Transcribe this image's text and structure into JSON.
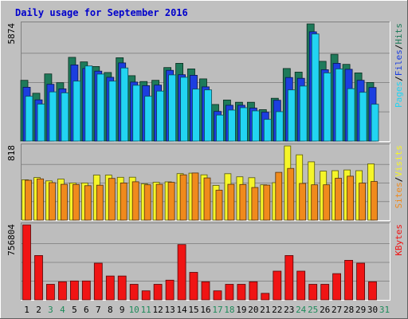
{
  "colors": {
    "background": "#C0C0C0",
    "panel": "#BDBDBD",
    "title": "#0000CC",
    "hits": "#1E7A5A",
    "files": "#1C3EE0",
    "pages": "#22D4F2",
    "visits": "#F5F529",
    "sites": "#F08A1C",
    "kbytes": "#F01414",
    "weekend": "#1E8A5A",
    "weekday": "#000000"
  },
  "chart_data": {
    "type": "bar",
    "title": "Daily usage for September 2016",
    "days": [
      "1",
      "2",
      "3",
      "4",
      "5",
      "6",
      "7",
      "8",
      "9",
      "10",
      "11",
      "12",
      "13",
      "14",
      "15",
      "16",
      "17",
      "18",
      "19",
      "20",
      "21",
      "22",
      "23",
      "24",
      "25",
      "26",
      "27",
      "28",
      "29",
      "30",
      "31"
    ],
    "weekend_days": [
      "3",
      "4",
      "10",
      "11",
      "17",
      "18",
      "24",
      "25",
      "31"
    ],
    "panels": [
      {
        "id": "hits",
        "max_label": "5874",
        "ylim": [
          0,
          5874
        ],
        "legend": [
          "Pages",
          "Files",
          "Hits"
        ],
        "legend_sep": "/",
        "series": [
          {
            "name": "Hits",
            "values": [
              3050,
              2400,
              3370,
              2930,
              4200,
              3970,
              3740,
              3440,
              4180,
              3280,
              2990,
              3050,
              3690,
              3900,
              3620,
              3120,
              1840,
              2060,
              1950,
              1950,
              1580,
              2150,
              3640,
              3460,
              5874,
              4000,
              4350,
              3850,
              3420,
              2940,
              0
            ]
          },
          {
            "name": "Files",
            "values": [
              2700,
              2070,
              2850,
              2620,
              3820,
              3640,
              3510,
              3200,
              3920,
              2960,
              2780,
              2810,
              3550,
              3330,
              3300,
              2720,
              1490,
              1800,
              1800,
              1660,
              1450,
              2050,
              3190,
              3150,
              5480,
              3580,
              3900,
              3600,
              3050,
              2690,
              0
            ]
          },
          {
            "name": "Pages",
            "values": [
              2250,
              1860,
              2470,
              2420,
              3010,
              3770,
              3360,
              3010,
              3670,
              2800,
              2250,
              2510,
              3320,
              3200,
              2610,
              2570,
              1310,
              1560,
              1680,
              1520,
              1090,
              1480,
              2570,
              2760,
              5370,
              3420,
              3620,
              2630,
              2450,
              1850,
              0
            ]
          }
        ]
      },
      {
        "id": "visits",
        "max_label": "818",
        "ylim": [
          0,
          818
        ],
        "legend": [
          "Sites",
          "Visits"
        ],
        "legend_sep": "/",
        "series": [
          {
            "name": "Visits",
            "values": [
              445,
              470,
              433,
              453,
              410,
              410,
              497,
              497,
              472,
              473,
              400,
              418,
              422,
              513,
              518,
              500,
              383,
              512,
              478,
              468,
              390,
              413,
              818,
              720,
              643,
              540,
              545,
              553,
              545,
              621,
              0
            ]
          },
          {
            "name": "Sites",
            "values": [
              440,
              455,
              413,
              395,
              393,
              380,
              385,
              460,
              410,
              423,
              390,
              395,
              417,
              500,
              520,
              465,
              330,
              395,
              393,
              360,
              386,
              527,
              570,
              405,
              390,
              390,
              462,
              485,
              408,
              426,
              0
            ]
          }
        ]
      },
      {
        "id": "kbytes",
        "max_label": "756804",
        "ylim": [
          0,
          756804
        ],
        "legend": [
          "KBytes"
        ],
        "legend_sep": "",
        "series": [
          {
            "name": "KBytes",
            "values": [
              756804,
              448000,
              157000,
              183000,
              191000,
              191000,
              370000,
              241000,
              241000,
              157000,
              91000,
              157000,
              199000,
              558000,
              278000,
              183000,
              91000,
              157000,
              157000,
              183000,
              66000,
              290000,
              448000,
              290000,
              157000,
              157000,
              265000,
              399000,
              370000,
              183000,
              0
            ]
          }
        ]
      }
    ]
  }
}
